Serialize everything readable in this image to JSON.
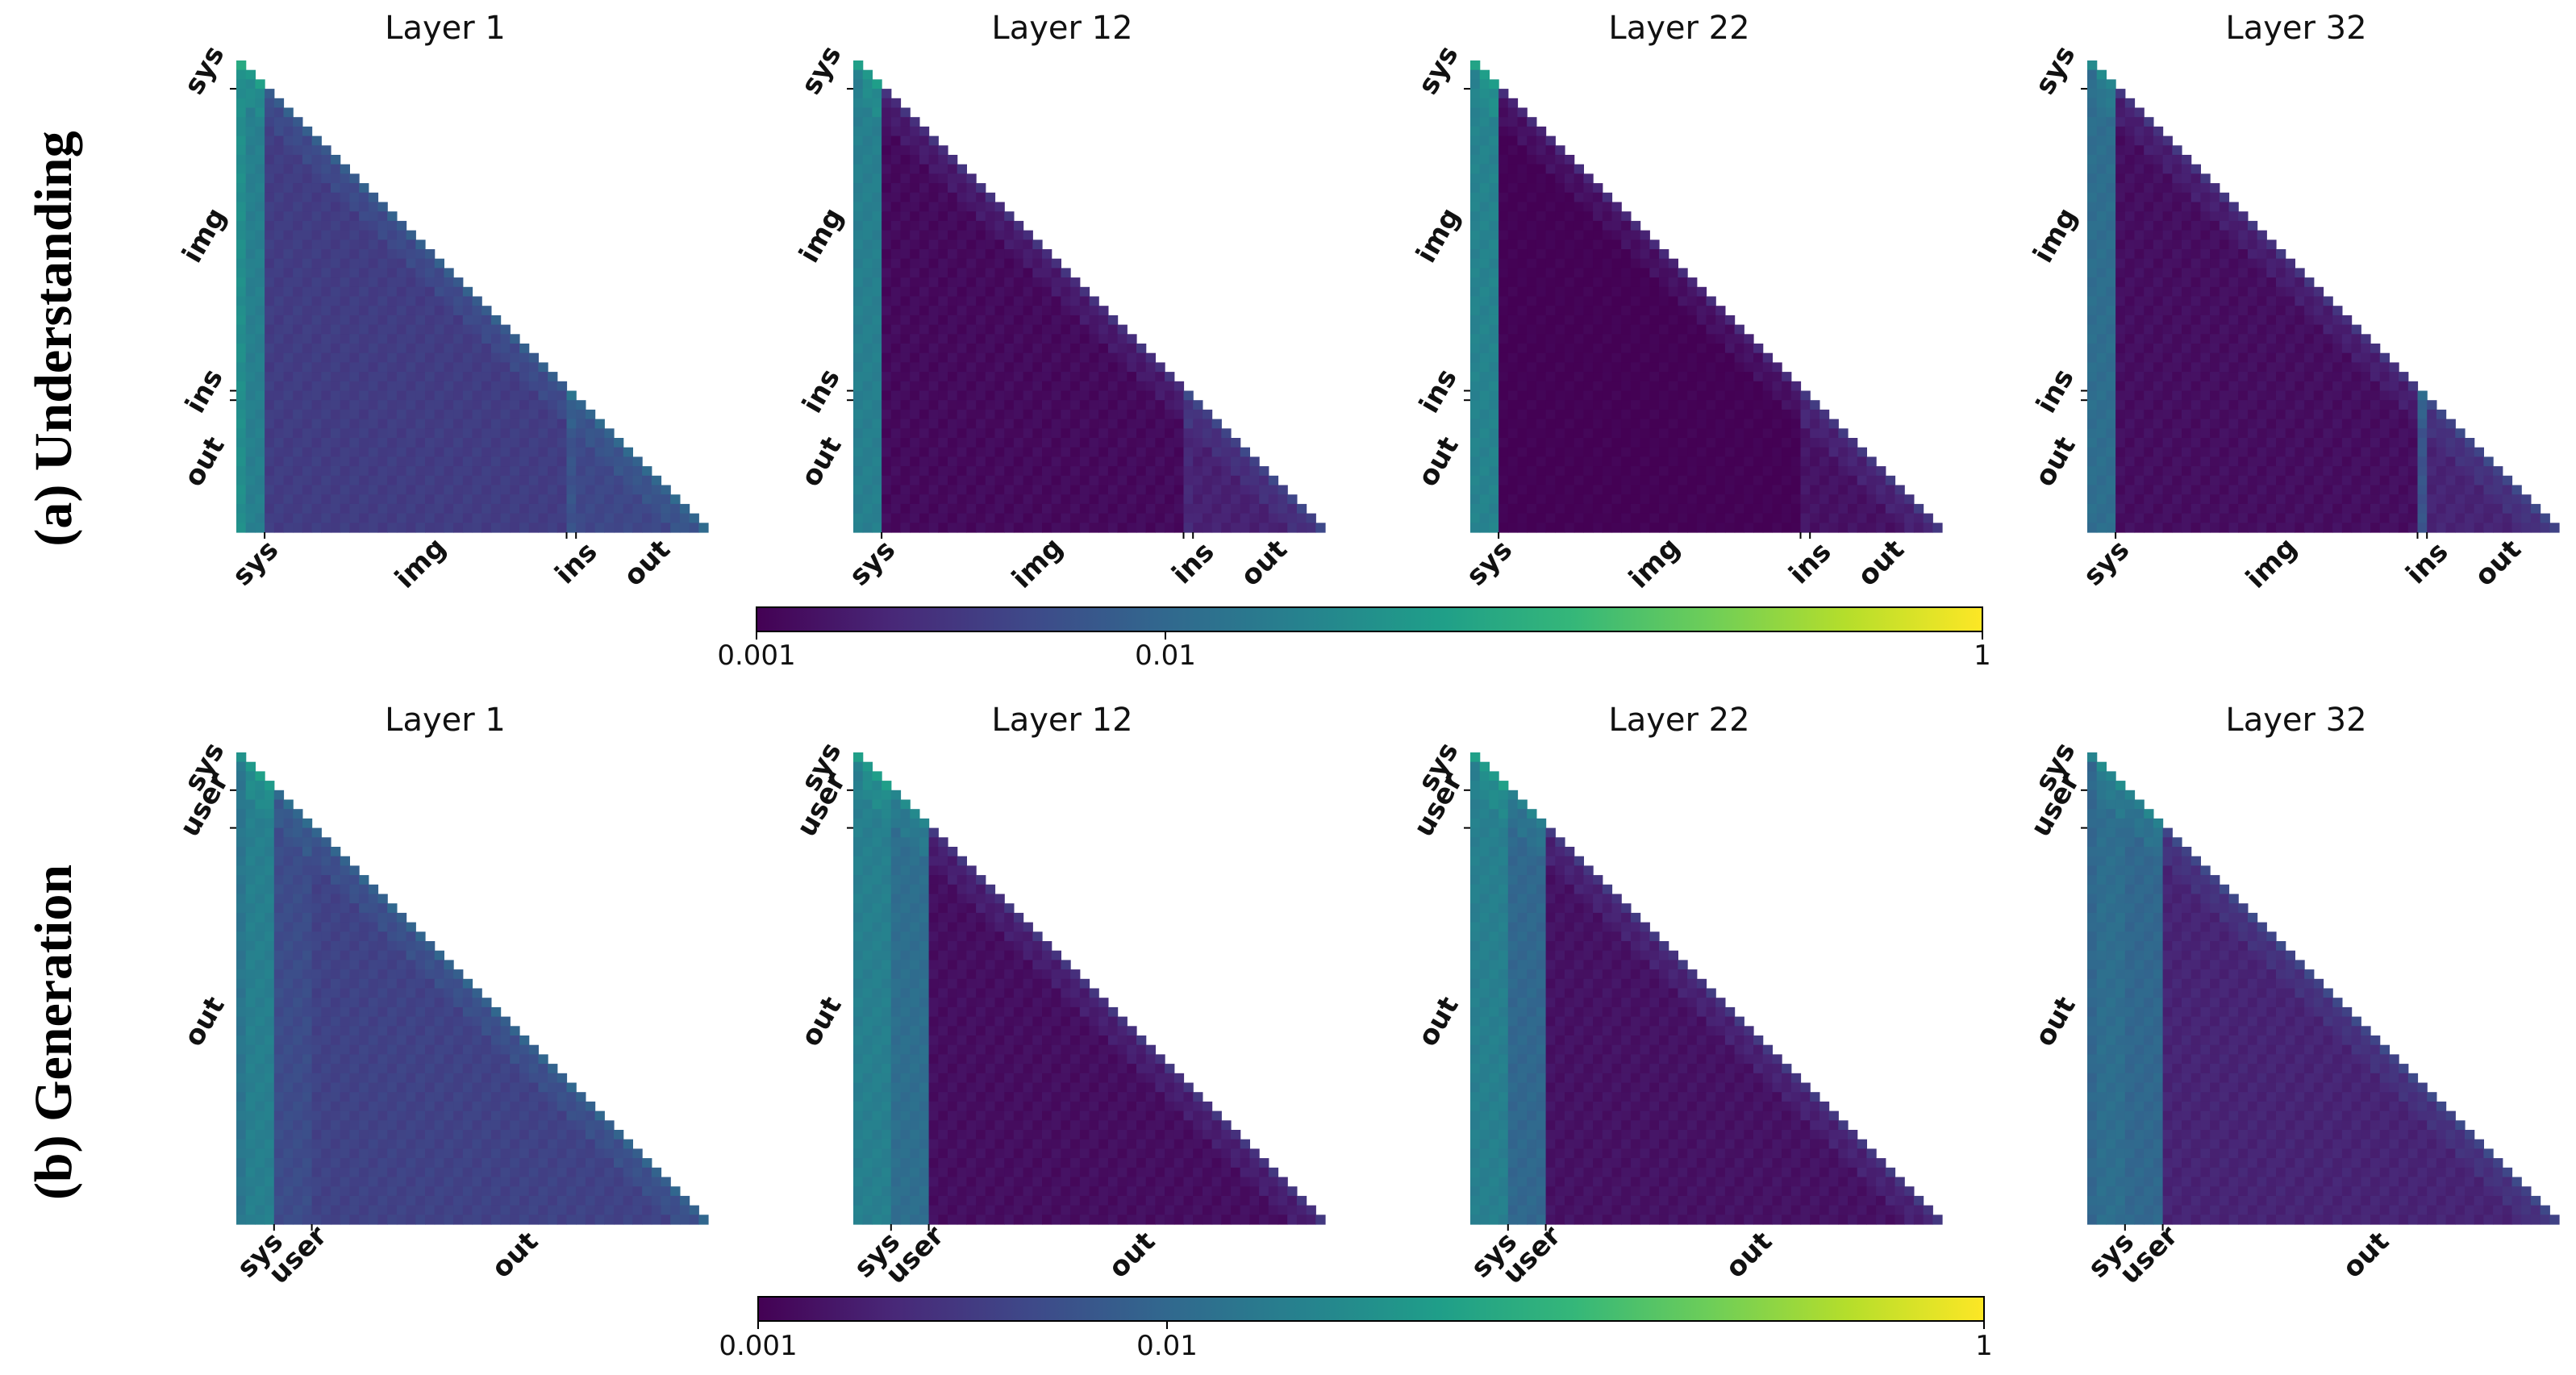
{
  "colors": {
    "viridis": [
      "#440154",
      "#482878",
      "#3e4989",
      "#31688e",
      "#26828e",
      "#1f9e89",
      "#35b779",
      "#6ece58",
      "#b5de2b",
      "#fde725"
    ]
  },
  "chart_data": [
    {
      "row_label": "(a) Understanding",
      "type": "heatmap",
      "n_tokens": 50,
      "colorbar": {
        "scale": "log",
        "min": 0.001,
        "max": 1,
        "ticks": [
          "0.001",
          "0.01",
          "1"
        ]
      },
      "segments": [
        {
          "name": "sys",
          "start": 0,
          "end": 3
        },
        {
          "name": "img",
          "start": 3,
          "end": 35
        },
        {
          "name": "ins",
          "start": 35,
          "end": 36
        },
        {
          "name": "out",
          "start": 36,
          "end": 50
        }
      ],
      "axis_labels": [
        {
          "text": "sys",
          "pos": 1.5
        },
        {
          "text": "img",
          "pos": 19
        },
        {
          "text": "ins",
          "pos": 35.5
        },
        {
          "text": "out",
          "pos": 43
        }
      ],
      "panels": [
        {
          "title": "Layer 1",
          "first_col": 0.03,
          "seg_values": {
            "sys": 0.02,
            "img": 0.0035,
            "ins": 0.006,
            "out": 0.0045
          }
        },
        {
          "title": "Layer 12",
          "first_col": 0.02,
          "seg_values": {
            "sys": 0.02,
            "img": 0.0012,
            "ins": 0.0022,
            "out": 0.0019
          }
        },
        {
          "title": "Layer 22",
          "first_col": 0.022,
          "seg_values": {
            "sys": 0.022,
            "img": 0.001,
            "ins": 0.0015,
            "out": 0.0014
          }
        },
        {
          "title": "Layer 32",
          "first_col": 0.012,
          "seg_values": {
            "sys": 0.012,
            "img": 0.0013,
            "ins": 0.006,
            "out": 0.002
          }
        }
      ]
    },
    {
      "row_label": "(b) Generation",
      "type": "heatmap",
      "n_tokens": 50,
      "colorbar": {
        "scale": "log",
        "min": 0.001,
        "max": 1,
        "ticks": [
          "0.001",
          "0.01",
          "1"
        ]
      },
      "segments": [
        {
          "name": "sys",
          "start": 0,
          "end": 4
        },
        {
          "name": "user",
          "start": 4,
          "end": 8
        },
        {
          "name": "out",
          "start": 8,
          "end": 50
        }
      ],
      "axis_labels": [
        {
          "text": "sys",
          "pos": 2
        },
        {
          "text": "user",
          "pos": 6
        },
        {
          "text": "out",
          "pos": 29
        }
      ],
      "panels": [
        {
          "title": "Layer 1",
          "first_col": 0.015,
          "seg_values": {
            "sys": 0.02,
            "user": 0.005,
            "out": 0.004
          }
        },
        {
          "title": "Layer 12",
          "first_col": 0.02,
          "seg_values": {
            "sys": 0.02,
            "user": 0.012,
            "out": 0.0013
          }
        },
        {
          "title": "Layer 22",
          "first_col": 0.02,
          "seg_values": {
            "sys": 0.02,
            "user": 0.01,
            "out": 0.0014
          }
        },
        {
          "title": "Layer 32",
          "first_col": 0.01,
          "seg_values": {
            "sys": 0.012,
            "user": 0.01,
            "out": 0.002
          }
        }
      ]
    }
  ]
}
